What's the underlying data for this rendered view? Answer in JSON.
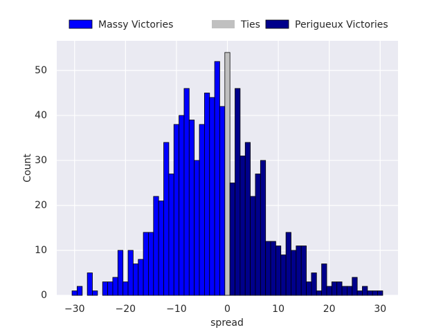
{
  "chart_data": {
    "type": "histogram",
    "xlabel": "spread",
    "ylabel": "Count",
    "xlim": [
      -33.5,
      33.5
    ],
    "ylim": [
      0,
      56.6
    ],
    "xticks": [
      {
        "value": -30,
        "label": "−30"
      },
      {
        "value": -20,
        "label": "−20"
      },
      {
        "value": -10,
        "label": "−10"
      },
      0,
      10,
      20,
      30
    ],
    "yticks": [
      0,
      10,
      20,
      30,
      40,
      50
    ],
    "grid": true,
    "legend": "top",
    "series": [
      {
        "name": "Massy Victories",
        "color": "#0000ff",
        "bins": [
          -30.5,
          -29.5,
          -28.5,
          -27.5,
          -26.5,
          -25.5,
          -24.5,
          -23.5,
          -22.5,
          -21.5,
          -20.5,
          -19.5,
          -18.5,
          -17.5,
          -16.5,
          -15.5,
          -14.5,
          -13.5,
          -12.5,
          -11.5,
          -10.5,
          -9.5,
          -8.5,
          -7.5,
          -6.5,
          -5.5,
          -4.5,
          -3.5,
          -2.5,
          -1.5,
          -0.5
        ],
        "values": [
          1,
          2,
          0,
          5,
          1,
          0,
          3,
          3,
          4,
          10,
          3,
          10,
          7,
          8,
          14,
          14,
          22,
          21,
          34,
          27,
          38,
          40,
          46,
          39,
          30,
          38,
          45,
          44,
          52,
          42
        ]
      },
      {
        "name": "Ties",
        "color": "#c0c0c0",
        "bins": [
          -0.5,
          0.5
        ],
        "values": [
          54
        ]
      },
      {
        "name": "Perigueux Victories",
        "color": "#00008b",
        "bins": [
          0.5,
          1.5,
          2.5,
          3.5,
          4.5,
          5.5,
          6.5,
          7.5,
          8.5,
          9.5,
          10.5,
          11.5,
          12.5,
          13.5,
          14.5,
          15.5,
          16.5,
          17.5,
          18.5,
          19.5,
          20.5,
          21.5,
          22.5,
          23.5,
          24.5,
          25.5,
          26.5,
          27.5,
          28.5,
          29.5,
          30.5
        ],
        "values": [
          25,
          46,
          31,
          34,
          22,
          27,
          30,
          12,
          12,
          11,
          9,
          14,
          10,
          11,
          11,
          3,
          5,
          1,
          7,
          2,
          3,
          3,
          2,
          2,
          4,
          1,
          2,
          1,
          1,
          1
        ]
      }
    ]
  }
}
